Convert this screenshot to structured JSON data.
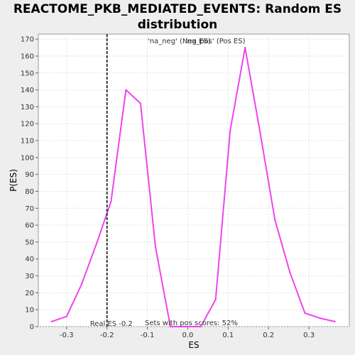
{
  "chart_data": {
    "type": "line",
    "title": "REACTOME_PKB_MEDIATED_EVENTS: Random ES distribution",
    "xlabel": "ES",
    "ylabel": "P(ES)",
    "xlim": [
      -0.37,
      0.4
    ],
    "ylim": [
      0,
      173
    ],
    "x_ticks": [
      "-0.3",
      "-0.2",
      "-0.1",
      "0.0",
      "0.1",
      "0.2",
      "0.3"
    ],
    "y_ticks": [
      "0",
      "10",
      "20",
      "30",
      "40",
      "50",
      "60",
      "70",
      "80",
      "90",
      "100",
      "110",
      "120",
      "130",
      "140",
      "150",
      "160",
      "170"
    ],
    "grid": true,
    "legend": [
      {
        "label": "'na_neg' (Neg ES)",
        "color": "#3333cc"
      },
      {
        "label": "'na_pos' (Pos ES)",
        "color": "#ee3333"
      }
    ],
    "series": [
      {
        "color": "#ee44ee",
        "x": [
          -0.337,
          -0.3,
          -0.263,
          -0.226,
          -0.19,
          -0.153,
          -0.117,
          -0.08,
          -0.043,
          -0.005,
          0.032,
          0.069,
          0.105,
          0.142,
          0.179,
          0.216,
          0.253,
          0.29,
          0.327,
          0.364
        ],
        "y": [
          3,
          6,
          25,
          49,
          74,
          140,
          132,
          47,
          0,
          0,
          0,
          16,
          116,
          165,
          115,
          63,
          32,
          8,
          5,
          3
        ]
      }
    ],
    "real_es": {
      "value": -0.2,
      "label": "Real ES -0.2"
    },
    "annotation": "Sets with pos scores: 52%"
  }
}
